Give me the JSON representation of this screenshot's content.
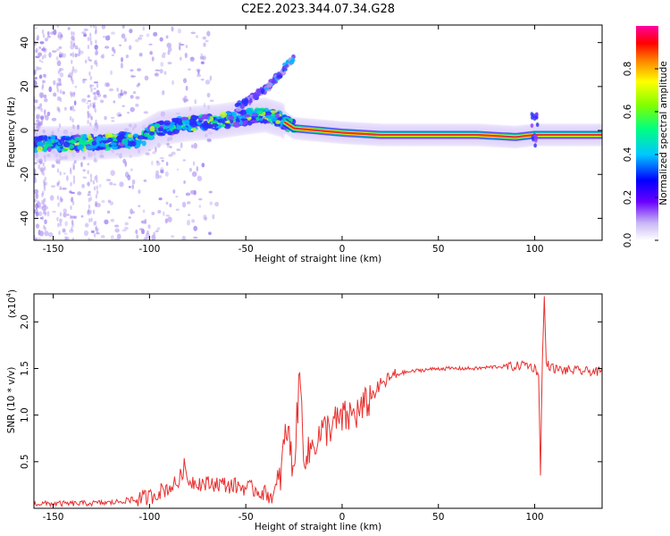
{
  "title": "C2E2.2023.344.07.34.G28",
  "colors": {
    "snr_line": "#e8302f",
    "frequency_track": "#e8302f",
    "scatter_purple": "#b59cf0"
  },
  "chart_data": [
    {
      "type": "heatmap",
      "xlabel": "Height of straight line (km)",
      "ylabel": "Frequency (Hz)",
      "xlim": [
        -160,
        135
      ],
      "ylim": [
        -50,
        48
      ],
      "xticks": [
        -150,
        -100,
        -50,
        0,
        50,
        100
      ],
      "xtick_labels": [
        "-150",
        "-100",
        "-50",
        "0",
        "50",
        "100"
      ],
      "yticks": [
        -40,
        -20,
        0,
        20,
        40
      ],
      "ytick_labels": [
        "-40",
        "-20",
        "0",
        "20",
        "40"
      ],
      "colorbar": {
        "label": "Normalized spectral amplitude",
        "range": [
          0,
          1
        ],
        "ticks": [
          0.0,
          0.2,
          0.4,
          0.6,
          0.8
        ],
        "tick_labels": [
          "0.0",
          "0.2",
          "0.4",
          "0.6",
          "0.8"
        ],
        "colormap": [
          "#ffffff",
          "#b59cf0",
          "#6a00ff",
          "#0000ff",
          "#00c8ff",
          "#00ff80",
          "#80ff00",
          "#ffff00",
          "#ff8000",
          "#ff0000",
          "#ff00a0"
        ]
      },
      "ridge": {
        "x": [
          -160,
          -140,
          -120,
          -105,
          -95,
          -80,
          -65,
          -50,
          -40,
          -32,
          -25,
          0,
          20,
          50,
          70,
          80,
          90,
          100,
          110,
          135
        ],
        "y": [
          -6,
          -6,
          -5,
          -4,
          1,
          3,
          4,
          6,
          7,
          5,
          1,
          -1,
          -2,
          -2,
          -2,
          -2.5,
          -3,
          -2,
          -2,
          -2
        ]
      },
      "branch": {
        "x": [
          -55,
          -50,
          -45,
          -40,
          -35,
          -30,
          -25
        ],
        "y": [
          10,
          13,
          16,
          19,
          23,
          28,
          33
        ]
      }
    },
    {
      "type": "line",
      "xlabel": "Height of straight line (km)",
      "ylabel": "SNR (10 * v/v)",
      "y_scale_label": "(x10",
      "y_scale_exponent": "4",
      "xlim": [
        -160,
        135
      ],
      "ylim": [
        0,
        2.3
      ],
      "xticks": [
        -150,
        -100,
        -50,
        0,
        50,
        100
      ],
      "xtick_labels": [
        "-150",
        "-100",
        "-50",
        "0",
        "50",
        "100"
      ],
      "yticks": [
        0.5,
        1.0,
        1.5,
        2.0
      ],
      "ytick_labels": [
        "0.5",
        "1.0",
        "1.5",
        "2.0"
      ],
      "series": [
        {
          "x": [
            -160,
            -140,
            -120,
            -100,
            -95,
            -90,
            -85,
            -82,
            -80,
            -75,
            -70,
            -65,
            -60,
            -55,
            -50,
            -45,
            -40,
            -35,
            -32,
            -30,
            -28,
            -27,
            -25,
            -23,
            -22,
            -20,
            -18,
            -15,
            -10,
            -5,
            0,
            5,
            10,
            12,
            15,
            20,
            25,
            30,
            40,
            50,
            60,
            70,
            80,
            90,
            95,
            100,
            102,
            103,
            104,
            105,
            106,
            110,
            115,
            120,
            125,
            130,
            135
          ],
          "y": [
            0.05,
            0.05,
            0.06,
            0.12,
            0.18,
            0.22,
            0.28,
            0.45,
            0.3,
            0.28,
            0.26,
            0.27,
            0.25,
            0.24,
            0.22,
            0.2,
            0.16,
            0.12,
            0.35,
            0.7,
            0.9,
            0.6,
            0.45,
            1.1,
            1.45,
            0.65,
            0.55,
            0.7,
            0.82,
            0.9,
            0.95,
            1.0,
            1.05,
            1.1,
            1.2,
            1.32,
            1.4,
            1.45,
            1.48,
            1.5,
            1.5,
            1.5,
            1.52,
            1.52,
            1.55,
            1.5,
            1.45,
            0.4,
            1.6,
            2.25,
            1.55,
            1.5,
            1.48,
            1.48,
            1.47,
            1.47,
            1.46
          ]
        }
      ]
    }
  ]
}
